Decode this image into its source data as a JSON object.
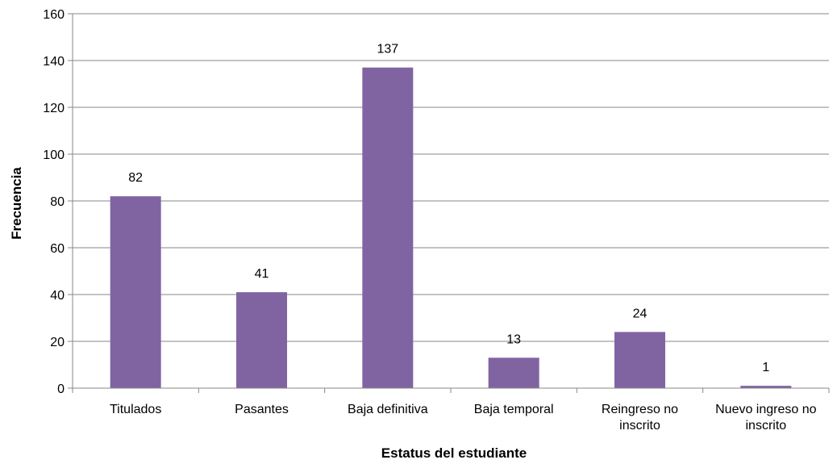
{
  "chart_data": {
    "type": "bar",
    "title": "",
    "xlabel": "Estatus del estudiante",
    "ylabel": "Frecuencia",
    "categories": [
      [
        "Titulados"
      ],
      [
        "Pasantes"
      ],
      [
        "Baja definitiva"
      ],
      [
        "Baja temporal"
      ],
      [
        "Reingreso no",
        "inscrito"
      ],
      [
        "Nuevo ingreso no",
        "inscrito"
      ]
    ],
    "values": [
      82,
      41,
      137,
      13,
      24,
      1
    ],
    "ylim": [
      0,
      160
    ],
    "yticks": [
      0,
      20,
      40,
      60,
      80,
      100,
      120,
      140,
      160
    ],
    "grid": true,
    "legend": "none",
    "colors": {
      "bar": "#8064A2",
      "grid": "#878787",
      "axis": "#878787"
    }
  }
}
